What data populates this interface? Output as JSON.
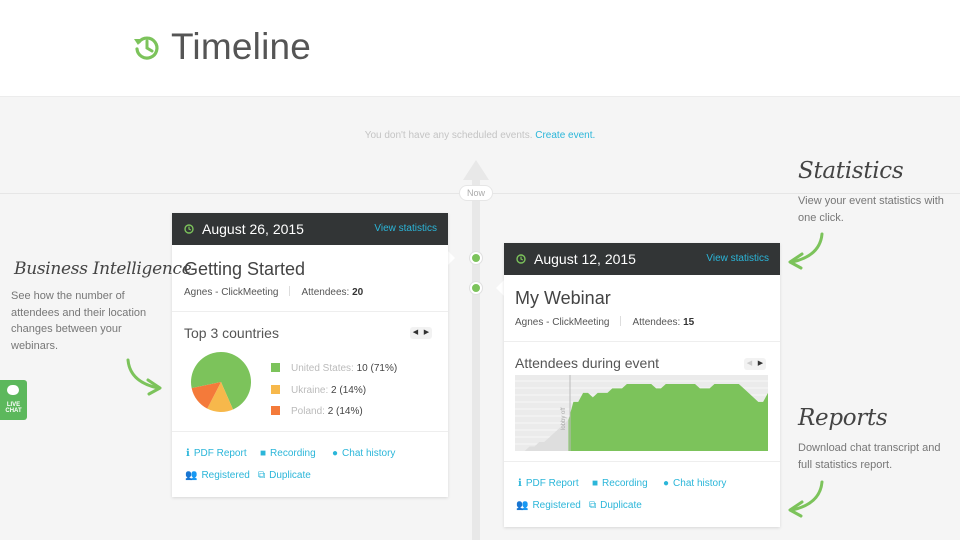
{
  "header": {
    "title": "Timeline",
    "icon": "history-clock-icon",
    "accent": "#7cc35b"
  },
  "notice": {
    "text": "You don't have any scheduled events.",
    "link": "Create event."
  },
  "timeline": {
    "now_label": "Now"
  },
  "events": [
    {
      "date": "August 26, 2015",
      "view_label": "View statistics",
      "title": "Getting Started",
      "host": "Agnes - ClickMeeting",
      "attendees_label": "Attendees:",
      "attendees": "20",
      "widget_title": "Top 3 countries",
      "countries": [
        {
          "name": "United States:",
          "value": "10 (71%)",
          "share": 71,
          "color": "#7cc35b"
        },
        {
          "name": "Ukraine:",
          "value": "2 (14%)",
          "share": 14,
          "color": "#f7b84b"
        },
        {
          "name": "Poland:",
          "value": "2 (14%)",
          "share": 14,
          "color": "#f47a3a"
        }
      ],
      "links": {
        "pdf": "PDF Report",
        "recording": "Recording",
        "chat": "Chat history",
        "registered": "Registered",
        "duplicate": "Duplicate"
      }
    },
    {
      "date": "August 12, 2015",
      "view_label": "View statistics",
      "title": "My Webinar",
      "host": "Agnes - ClickMeeting",
      "attendees_label": "Attendees:",
      "attendees": "15",
      "widget_title": "Attendees during event",
      "chart_marker_label": "lobby off",
      "links": {
        "pdf": "PDF Report",
        "recording": "Recording",
        "chat": "Chat history",
        "registered": "Registered",
        "duplicate": "Duplicate"
      }
    }
  ],
  "callouts": {
    "business": {
      "title": "Business Intelligence",
      "text": "See how the number of attendees and their location changes between your webinars."
    },
    "statistics": {
      "title": "Statistics",
      "text": "View your event statistics with one click."
    },
    "reports": {
      "title": "Reports",
      "text": "Download chat transcript and full statistics report."
    }
  },
  "livechat": {
    "label": "LIVE CHAT"
  },
  "chart_data": {
    "type": "area",
    "series": [
      {
        "values": [
          0,
          0,
          0,
          1,
          1,
          2,
          2,
          3,
          4,
          5,
          6,
          7,
          11,
          11,
          13,
          13,
          12,
          13,
          13,
          13,
          14,
          14,
          14,
          15,
          15,
          15,
          15,
          15,
          15,
          14,
          14,
          15,
          15,
          15,
          15,
          15,
          15,
          15,
          14,
          14,
          14,
          15,
          15,
          15,
          15,
          15,
          15,
          14,
          13,
          12,
          11,
          11,
          13
        ]
      }
    ],
    "ylim": [
      0,
      17
    ]
  }
}
